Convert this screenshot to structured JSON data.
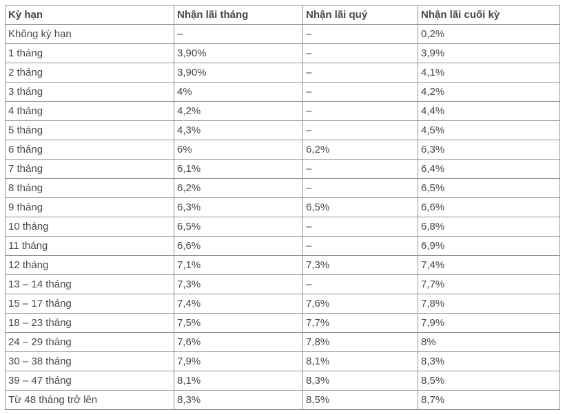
{
  "table": {
    "columns": [
      "Kỳ hạn",
      "Nhận lãi tháng",
      "Nhận lãi quý",
      "Nhận lãi cuối kỳ"
    ],
    "rows": [
      {
        "term": "Không kỳ hạn",
        "monthly": "–",
        "quarterly": "–",
        "end_of_term": "0,2%"
      },
      {
        "term": "1 tháng",
        "monthly": "3,90%",
        "quarterly": "–",
        "end_of_term": "3,9%"
      },
      {
        "term": "2 tháng",
        "monthly": "3,90%",
        "quarterly": "–",
        "end_of_term": "4,1%"
      },
      {
        "term": "3 tháng",
        "monthly": "4%",
        "quarterly": "–",
        "end_of_term": "4,2%"
      },
      {
        "term": "4 tháng",
        "monthly": "4,2%",
        "quarterly": "–",
        "end_of_term": "4,4%"
      },
      {
        "term": "5 tháng",
        "monthly": "4,3%",
        "quarterly": "–",
        "end_of_term": "4,5%"
      },
      {
        "term": "6 tháng",
        "monthly": "6%",
        "quarterly": "6,2%",
        "end_of_term": "6,3%"
      },
      {
        "term": "7 tháng",
        "monthly": "6,1%",
        "quarterly": "–",
        "end_of_term": "6,4%"
      },
      {
        "term": "8 tháng",
        "monthly": "6,2%",
        "quarterly": "–",
        "end_of_term": "6,5%"
      },
      {
        "term": "9 tháng",
        "monthly": "6,3%",
        "quarterly": "6,5%",
        "end_of_term": "6,6%"
      },
      {
        "term": "10 tháng",
        "monthly": "6,5%",
        "quarterly": "–",
        "end_of_term": "6,8%"
      },
      {
        "term": "11 tháng",
        "monthly": "6,6%",
        "quarterly": "–",
        "end_of_term": "6,9%"
      },
      {
        "term": "12 tháng",
        "monthly": "7,1%",
        "quarterly": "7,3%",
        "end_of_term": "7,4%"
      },
      {
        "term": "13 – 14 tháng",
        "monthly": "7,3%",
        "quarterly": "–",
        "end_of_term": "7,7%"
      },
      {
        "term": "15 – 17 tháng",
        "monthly": "7,4%",
        "quarterly": "7,6%",
        "end_of_term": "7,8%"
      },
      {
        "term": "18 – 23 tháng",
        "monthly": "7,5%",
        "quarterly": "7,7%",
        "end_of_term": "7,9%"
      },
      {
        "term": "24 – 29 tháng",
        "monthly": "7,6%",
        "quarterly": "7,8%",
        "end_of_term": "8%"
      },
      {
        "term": "30 – 38 tháng",
        "monthly": "7,9%",
        "quarterly": "8,1%",
        "end_of_term": "8,3%"
      },
      {
        "term": "39 – 47 tháng",
        "monthly": "8,1%",
        "quarterly": "8,3%",
        "end_of_term": "8,5%"
      },
      {
        "term": "Từ 48 tháng trở lên",
        "monthly": "8,3%",
        "quarterly": "8,5%",
        "end_of_term": "8,7%"
      }
    ]
  },
  "chart_data": {
    "type": "table",
    "title": "",
    "categories": [
      "Không kỳ hạn",
      "1 tháng",
      "2 tháng",
      "3 tháng",
      "4 tháng",
      "5 tháng",
      "6 tháng",
      "7 tháng",
      "8 tháng",
      "9 tháng",
      "10 tháng",
      "11 tháng",
      "12 tháng",
      "13 – 14 tháng",
      "15 – 17 tháng",
      "18 – 23 tháng",
      "24 – 29 tháng",
      "30 – 38 tháng",
      "39 – 47 tháng",
      "Từ 48 tháng trở lên"
    ],
    "series": [
      {
        "name": "Nhận lãi tháng",
        "values": [
          null,
          3.9,
          3.9,
          4,
          4.2,
          4.3,
          6,
          6.1,
          6.2,
          6.3,
          6.5,
          6.6,
          7.1,
          7.3,
          7.4,
          7.5,
          7.6,
          7.9,
          8.1,
          8.3
        ]
      },
      {
        "name": "Nhận lãi quý",
        "values": [
          null,
          null,
          null,
          null,
          null,
          null,
          6.2,
          null,
          null,
          6.5,
          null,
          null,
          7.3,
          null,
          7.6,
          7.7,
          7.8,
          8.1,
          8.3,
          8.5
        ]
      },
      {
        "name": "Nhận lãi cuối kỳ",
        "values": [
          0.2,
          3.9,
          4.1,
          4.2,
          4.4,
          4.5,
          6.3,
          6.4,
          6.5,
          6.6,
          6.8,
          6.9,
          7.4,
          7.7,
          7.8,
          7.9,
          8,
          8.3,
          8.5,
          8.7
        ]
      }
    ],
    "unit": "%",
    "empty_cell_marker": "–"
  },
  "colors": {
    "text": "#3f4a53",
    "border": "#909090",
    "background": "#ffffff"
  }
}
